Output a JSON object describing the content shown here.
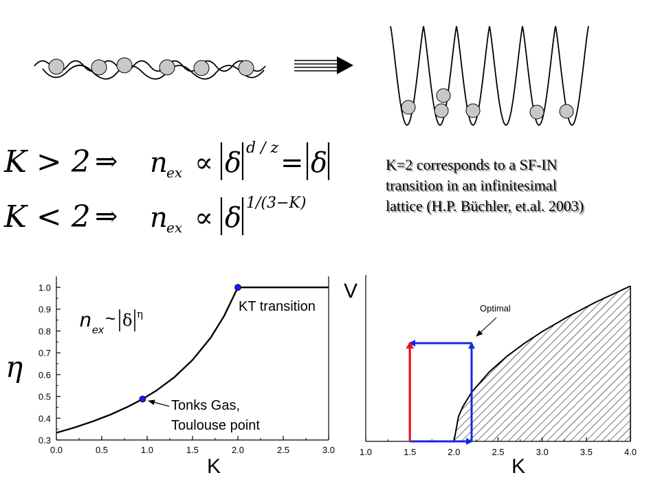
{
  "equations": {
    "line1": {
      "lhs": "K > 2",
      "implies": "⇒",
      "n": "n",
      "sub": "ex",
      "propto": "∝",
      "delta": "δ",
      "exponent": "d / z",
      "equals": "=",
      "delta2": "δ"
    },
    "line2": {
      "lhs": "K < 2",
      "implies": "⇒",
      "n": "n",
      "sub": "ex",
      "propto": "∝",
      "delta": "δ",
      "exponent": "1/(3−K)"
    }
  },
  "caption": {
    "lines": [
      "K=2 corresponds to a SF-IN",
      "transition in an infinitesimal",
      "lattice (H.P. Büchler, et.al. 2003)"
    ]
  },
  "chart_data": [
    {
      "type": "line",
      "xlabel": "K",
      "ylabel": "η",
      "xlim": [
        0.0,
        3.0
      ],
      "ylim": [
        0.3,
        1.0
      ],
      "xticks": [
        "0.0",
        "0.5",
        "1.0",
        "1.5",
        "2.0",
        "2.5",
        "3.0"
      ],
      "yticks": [
        "0.3",
        "0.4",
        "0.5",
        "0.6",
        "0.7",
        "0.8",
        "0.9",
        "1.0"
      ],
      "series": [
        {
          "x": [
            0.0,
            0.2,
            0.4,
            0.6,
            0.8,
            0.95,
            1.1,
            1.3,
            1.5,
            1.7,
            1.85,
            2.0,
            2.5,
            3.0
          ],
          "y": [
            0.333,
            0.357,
            0.385,
            0.417,
            0.455,
            0.488,
            0.526,
            0.588,
            0.667,
            0.769,
            0.87,
            1.0,
            1.0,
            1.0
          ]
        }
      ],
      "points": [
        {
          "x": 2.0,
          "y": 1.0
        },
        {
          "x": 0.95,
          "y": 0.488
        }
      ],
      "formula": {
        "n": "n",
        "sub": "ex",
        "tilde": "~",
        "delta": "δ",
        "eta": "η"
      },
      "annotations": {
        "kt": "KT transition",
        "tonks_line1": "Tonks Gas,",
        "tonks_line2": "Toulouse point"
      }
    },
    {
      "type": "area",
      "xlabel": "K",
      "ylabel": "V",
      "xlim": [
        1.0,
        4.0
      ],
      "xticks": [
        "1.0",
        "1.5",
        "2.0",
        "2.5",
        "3.0",
        "3.5",
        "4.0"
      ],
      "boundary": {
        "x": [
          2.0,
          2.05,
          2.1,
          2.2,
          2.4,
          2.6,
          2.8,
          3.0,
          3.3,
          3.6,
          4.0
        ],
        "v": [
          0.0,
          0.183,
          0.258,
          0.365,
          0.516,
          0.632,
          0.73,
          0.816,
          0.93,
          1.033,
          1.155
        ]
      },
      "paths": {
        "red": {
          "x": [
            1.5,
            1.5
          ],
          "v": [
            0.0,
            0.73
          ]
        },
        "blue": {
          "x": [
            1.5,
            2.2,
            2.2,
            1.5
          ],
          "v": [
            0.0,
            0.0,
            0.73,
            0.73
          ]
        }
      },
      "annotation": "Optimal",
      "colors": {
        "red": "#e8141e",
        "blue": "#1428e0"
      }
    }
  ],
  "colors": {
    "point": "#1a1aff",
    "red_arrow": "#e8141e",
    "blue_arrow": "#1428e0"
  }
}
